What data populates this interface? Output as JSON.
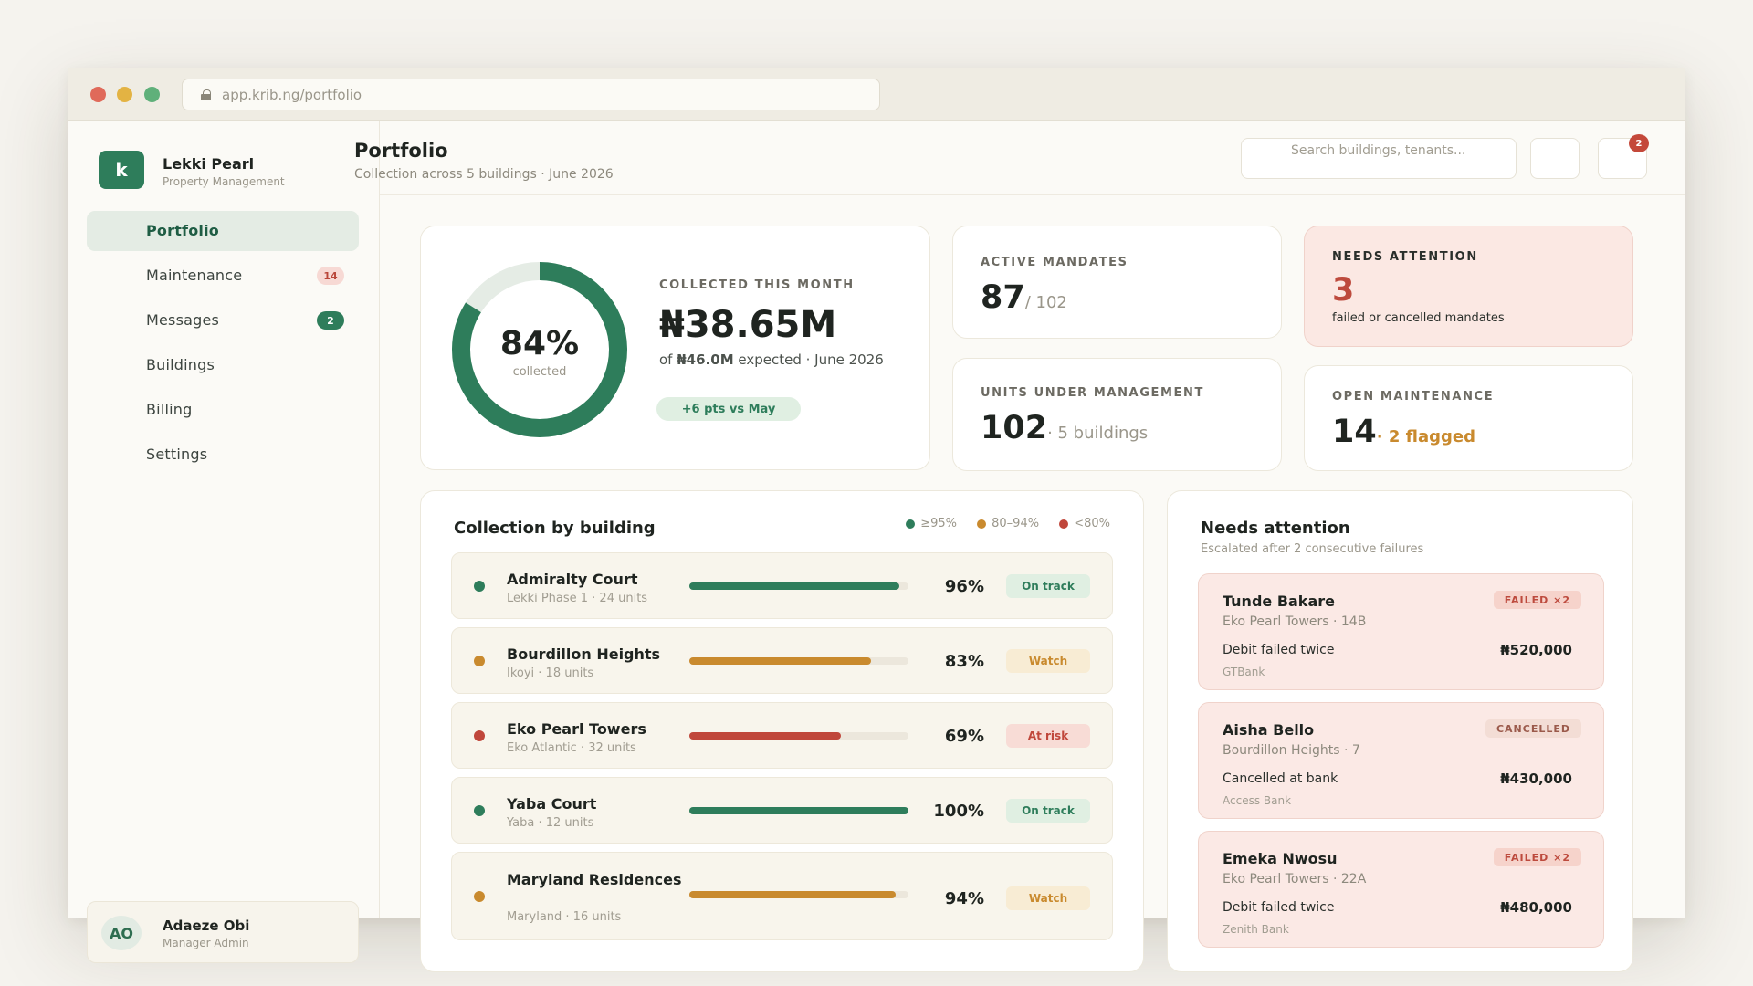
{
  "browser": {
    "url": "app.krib.ng/portfolio"
  },
  "brand": {
    "logo_letter": "k",
    "name": "Lekki Pearl",
    "subtitle": "Property Management"
  },
  "nav": [
    {
      "label": "Portfolio",
      "badge": ""
    },
    {
      "label": "Maintenance",
      "badge": "14"
    },
    {
      "label": "Messages",
      "badge": "2"
    },
    {
      "label": "Buildings",
      "badge": ""
    },
    {
      "label": "Billing",
      "badge": ""
    },
    {
      "label": "Settings",
      "badge": ""
    }
  ],
  "user": {
    "initials": "AO",
    "name": "Adaeze Obi",
    "role": "Manager Admin"
  },
  "header": {
    "title": "Portfolio",
    "subtitle": "Collection across 5 buildings · June 2026",
    "search_placeholder": "Search buildings, tenants...",
    "notification_count": "2"
  },
  "collected": {
    "label": "COLLECTED THIS MONTH",
    "percent_text": "84%",
    "percent_value": 84,
    "ring_caption": "collected",
    "amount": "₦38.65M",
    "expected_prefix": "of",
    "expected_amount": "₦46.0M",
    "expected_suffix": "expected · June 2026",
    "delta": "+6 pts vs May"
  },
  "kpis": {
    "active_mandates": {
      "label": "ACTIVE MANDATES",
      "value": "87",
      "suffix": "/ 102"
    },
    "needs_attention": {
      "label": "NEEDS ATTENTION",
      "value": "3",
      "caption": "failed or cancelled mandates"
    },
    "units": {
      "label": "UNITS UNDER MANAGEMENT",
      "value": "102",
      "suffix": "· 5 buildings"
    },
    "open_maintenance": {
      "label": "OPEN MAINTENANCE",
      "value": "14",
      "suffix": "· 2 flagged"
    }
  },
  "collection": {
    "title": "Collection by building",
    "legend": [
      {
        "label": "≥95%",
        "color": "#2e7d5b"
      },
      {
        "label": "80–94%",
        "color": "#c98a2e"
      },
      {
        "label": "<80%",
        "color": "#c0473b"
      }
    ],
    "rows": [
      {
        "name": "Admiralty Court",
        "sub": "Lekki Phase 1 · 24 units",
        "pct_text": "96%",
        "pct": 96,
        "status": "On track",
        "tone": "green"
      },
      {
        "name": "Bourdillon Heights",
        "sub": "Ikoyi · 18 units",
        "pct_text": "83%",
        "pct": 83,
        "status": "Watch",
        "tone": "amber"
      },
      {
        "name": "Eko Pearl Towers",
        "sub": "Eko Atlantic · 32 units",
        "pct_text": "69%",
        "pct": 69,
        "status": "At risk",
        "tone": "red"
      },
      {
        "name": "Yaba Court",
        "sub": "Yaba · 12 units",
        "pct_text": "100%",
        "pct": 100,
        "status": "On track",
        "tone": "green"
      },
      {
        "name": "Maryland Residences",
        "sub": "Maryland · 16 units",
        "pct_text": "94%",
        "pct": 94,
        "status": "Watch",
        "tone": "amber"
      }
    ]
  },
  "attention": {
    "title": "Needs attention",
    "subtitle": "Escalated after 2 consecutive failures",
    "items": [
      {
        "name": "Tunde Bakare",
        "unit": "Eko Pearl Towers · 14B",
        "tag": "FAILED ×2",
        "reason": "Debit failed twice",
        "amount": "₦520,000",
        "bank": "GTBank"
      },
      {
        "name": "Aisha Bello",
        "unit": "Bourdillon Heights · 7",
        "tag": "CANCELLED",
        "reason": "Cancelled at bank",
        "amount": "₦430,000",
        "bank": "Access Bank"
      },
      {
        "name": "Emeka Nwosu",
        "unit": "Eko Pearl Towers · 22A",
        "tag": "FAILED ×2",
        "reason": "Debit failed twice",
        "amount": "₦480,000",
        "bank": "Zenith Bank"
      }
    ]
  },
  "colors": {
    "green": "#2e7d5b",
    "amber": "#c98a2e",
    "red": "#c0473b"
  }
}
